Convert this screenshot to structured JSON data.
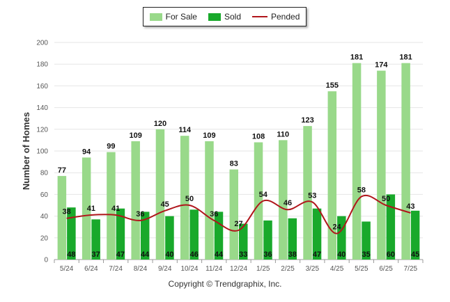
{
  "chart_data": {
    "type": "bar",
    "categories": [
      "5/24",
      "6/24",
      "7/24",
      "8/24",
      "9/24",
      "10/24",
      "11/24",
      "12/24",
      "1/25",
      "2/25",
      "3/25",
      "4/25",
      "5/25",
      "6/25",
      "7/25"
    ],
    "series": [
      {
        "name": "For Sale",
        "type": "bar",
        "color": "#99d98a",
        "values": [
          77,
          94,
          99,
          109,
          120,
          114,
          109,
          83,
          108,
          110,
          123,
          155,
          181,
          174,
          181
        ]
      },
      {
        "name": "Sold",
        "type": "bar",
        "color": "#19a92b",
        "values": [
          48,
          37,
          47,
          44,
          40,
          46,
          44,
          33,
          36,
          38,
          47,
          40,
          35,
          60,
          45
        ]
      },
      {
        "name": "Pended",
        "type": "line",
        "color": "#b0151b",
        "values": [
          38,
          41,
          41,
          36,
          45,
          50,
          36,
          27,
          54,
          46,
          53,
          24,
          58,
          50,
          43
        ]
      }
    ],
    "ylabel": "Number of Homes",
    "ylim": [
      0,
      200
    ],
    "yticks": [
      0,
      20,
      40,
      60,
      80,
      100,
      120,
      140,
      160,
      180,
      200
    ],
    "grid": true,
    "legend": "top-center"
  },
  "footer": "Copyright © Trendgraphix, Inc."
}
